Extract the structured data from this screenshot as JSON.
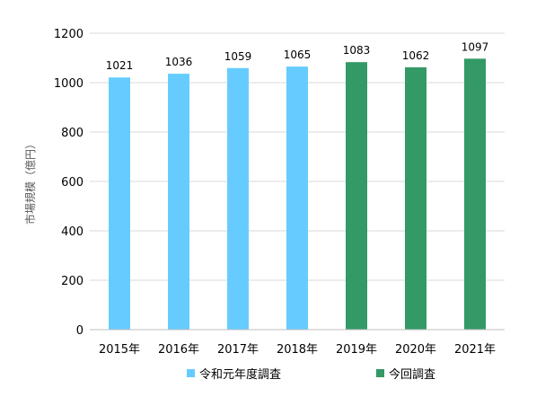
{
  "chart_data": {
    "type": "bar",
    "categories": [
      "2015年",
      "2016年",
      "2017年",
      "2018年",
      "2019年",
      "2020年",
      "2021年"
    ],
    "series": [
      {
        "name": "令和元年度調査",
        "color": "#66ccff",
        "values": [
          1021,
          1036,
          1059,
          1065,
          null,
          null,
          null
        ]
      },
      {
        "name": "今回調査",
        "color": "#339966",
        "values": [
          null,
          null,
          null,
          null,
          1083,
          1062,
          1097
        ]
      }
    ],
    "ylabel": "市場規模（億円）",
    "xlabel": "",
    "ylim": [
      0,
      1200
    ],
    "yticks": [
      0,
      200,
      400,
      600,
      800,
      1000,
      1200
    ],
    "grid": true,
    "legend": "bottom"
  }
}
